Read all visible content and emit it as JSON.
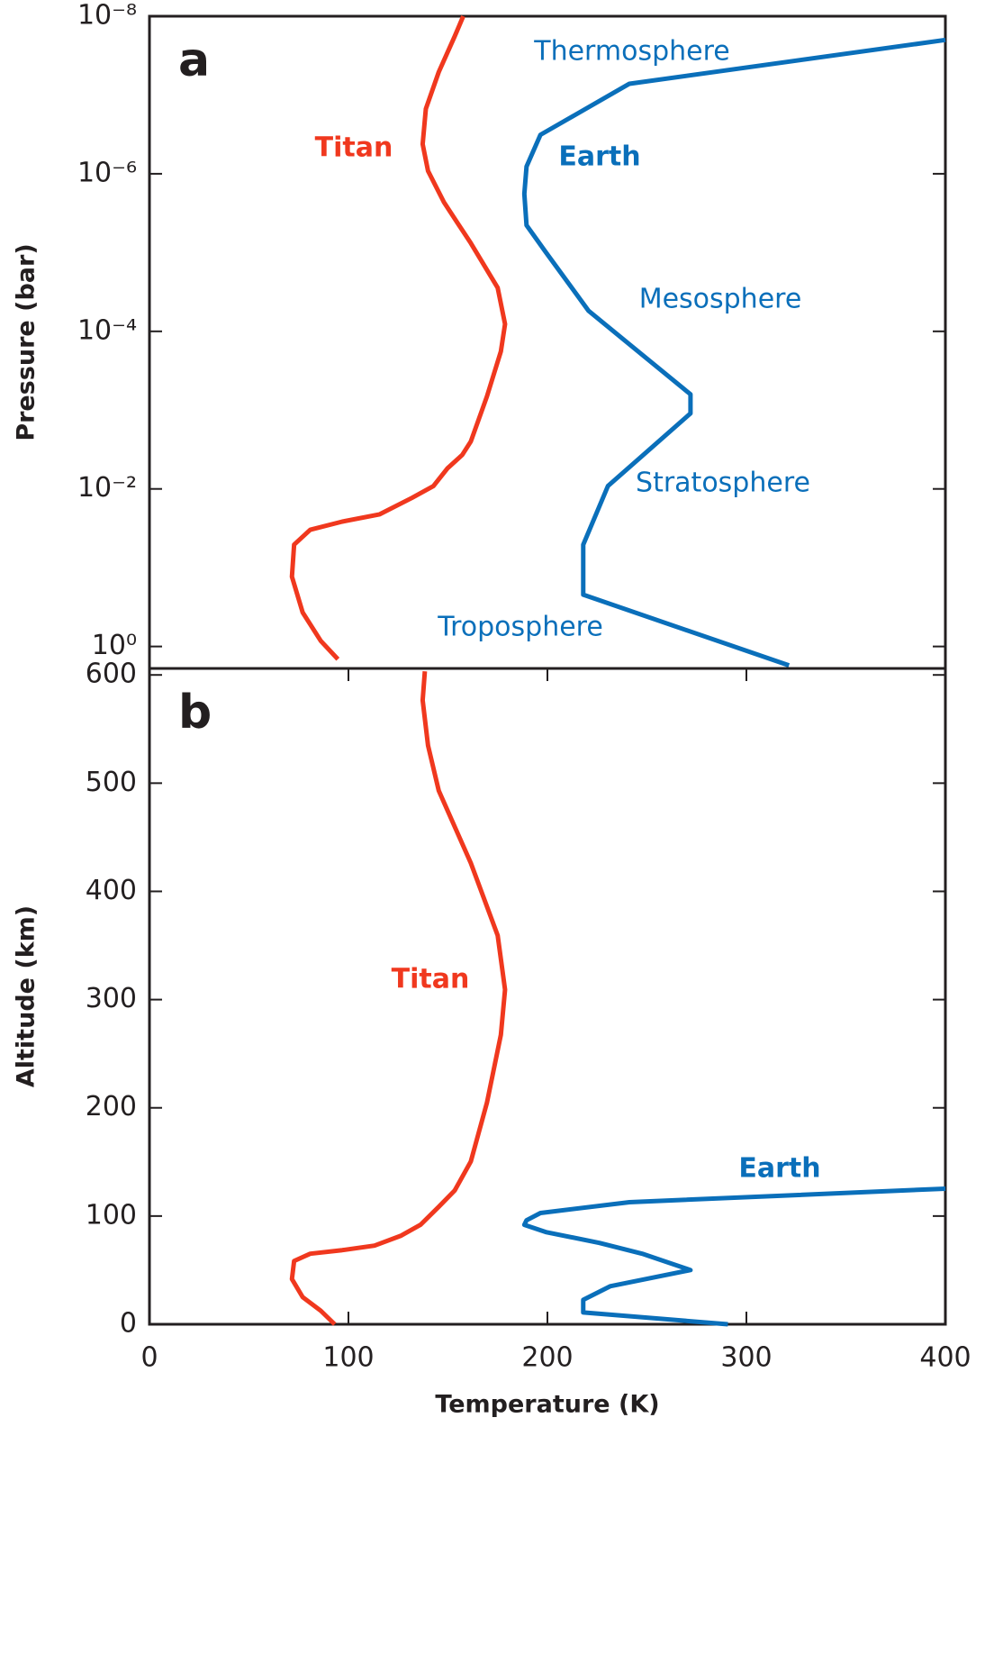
{
  "chart_data": [
    {
      "type": "line",
      "panel": "a",
      "ylabel": "Pressure (bar)",
      "yscale": "log",
      "xlim": [
        0,
        400
      ],
      "ylim": [
        1.9,
        1e-08
      ],
      "yticks": [
        {
          "value": 1e-08,
          "label": "10⁻⁸"
        },
        {
          "value": 1e-06,
          "label": "10⁻⁶"
        },
        {
          "value": 0.0001,
          "label": "10⁻⁴"
        },
        {
          "value": 0.01,
          "label": "10⁻²"
        },
        {
          "value": 1,
          "label": "10⁰"
        }
      ],
      "annotations": [
        "Thermosphere",
        "Mesosphere",
        "Stratosphere",
        "Troposphere"
      ],
      "series": [
        {
          "name": "Titan",
          "color": "#f0381e",
          "x": [
            94.7,
            86.1,
            77.0,
            71.6,
            72.7,
            80.8,
            96.9,
            115.7,
            131.9,
            142.7,
            149.7,
            157.2,
            161.5,
            169.6,
            176.6,
            178.7,
            175.0,
            161.5,
            148.0,
            140.0,
            137.3,
            138.9,
            145.4,
            153.4,
            157.7
          ],
          "values": [
            1.45,
            0.85,
            0.37,
            0.13,
            0.051,
            0.033,
            0.026,
            0.021,
            0.013,
            0.0092,
            0.0055,
            0.0037,
            0.0025,
            0.00067,
            0.00018,
            8.1e-05,
            2.8e-05,
            7.6e-06,
            2.3e-06,
            9.2e-07,
            4.2e-07,
            1.5e-07,
            5.1e-08,
            1.8e-08,
            1e-08
          ]
        },
        {
          "name": "Earth",
          "color": "#0a6fba",
          "x": [
            321.4,
            218.0,
            218.0,
            230.4,
            271.9,
            271.9,
            220.7,
            199.2,
            189.5,
            188.4,
            189.5,
            196.5,
            241.2,
            400
          ],
          "values": [
            1.74,
            0.22,
            0.051,
            0.0092,
            0.0011,
            0.00063,
            5.5e-05,
            9.9e-06,
            4.5e-06,
            1.8e-06,
            8.1e-07,
            3.2e-07,
            7.2e-08,
            2e-08
          ]
        }
      ]
    },
    {
      "type": "line",
      "panel": "b",
      "ylabel": "Altitude (km)",
      "xlabel": "Temperature (K)",
      "xlim": [
        0,
        400
      ],
      "xticks": [
        0,
        100,
        200,
        300,
        400
      ],
      "ylim": [
        0,
        606
      ],
      "yticks": [
        0,
        100,
        200,
        300,
        400,
        500,
        600
      ],
      "series": [
        {
          "name": "Titan",
          "color": "#f0381e",
          "x": [
            93.1,
            86.1,
            77.0,
            71.6,
            72.7,
            80.8,
            96.9,
            113.1,
            126.5,
            136.2,
            145.4,
            153.4,
            161.5,
            169.6,
            176.6,
            178.7,
            175.0,
            161.5,
            145.4,
            140.0,
            137.3,
            138.4
          ],
          "values": [
            0,
            12.5,
            25.1,
            41.8,
            58.5,
            65.2,
            68.5,
            72.7,
            81.9,
            91.9,
            108.6,
            123.6,
            150.4,
            204.7,
            267.4,
            309.2,
            359.3,
            426.2,
            493.0,
            534.8,
            576.6,
            603.3
          ]
        },
        {
          "name": "Earth",
          "color": "#0a6fba",
          "x": [
            290.7,
            218.0,
            218.0,
            231.5,
            271.9,
            247.6,
            226.1,
            199.2,
            188.4,
            189.5,
            196.5,
            241.2,
            400
          ],
          "values": [
            0,
            10.9,
            22.6,
            35.1,
            50.1,
            65.2,
            75.2,
            85.2,
            91.9,
            96.1,
            102.8,
            112.8,
            125.3
          ]
        }
      ]
    }
  ]
}
